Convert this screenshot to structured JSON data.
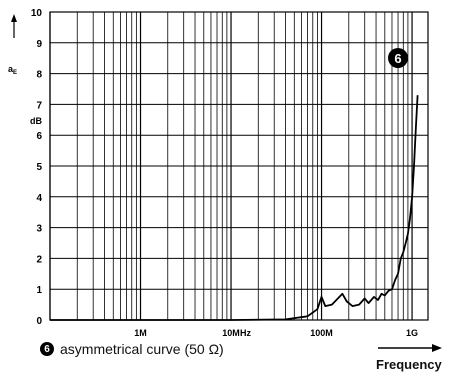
{
  "chart_data": {
    "type": "line",
    "title": "",
    "ylabel": "aE",
    "yunit": "dB",
    "xunit": "Hz",
    "xlabel": "Frequency",
    "xscale": "log",
    "xlim": [
      100000,
      1500000000
    ],
    "ylim": [
      0,
      10
    ],
    "yticks": [
      "0",
      "1",
      "2",
      "3",
      "4",
      "5",
      "6",
      "7",
      "8",
      "9",
      "10"
    ],
    "xticks": [
      {
        "value": 1000000,
        "label": "1M"
      },
      {
        "value": 10000000,
        "label": "10M"
      },
      {
        "value": 100000000,
        "label": "100M"
      },
      {
        "value": 1000000000,
        "label": "1G"
      }
    ],
    "grid": true,
    "series": [
      {
        "marker": "6",
        "x": [
          100000,
          1000000,
          10000000,
          40000000,
          70000000,
          90000000,
          100000000,
          110000000,
          130000000,
          170000000,
          190000000,
          220000000,
          260000000,
          300000000,
          330000000,
          380000000,
          420000000,
          460000000,
          500000000,
          550000000,
          600000000,
          650000000,
          700000000,
          750000000,
          800000000,
          850000000,
          900000000,
          950000000,
          1000000000,
          1050000000,
          1100000000,
          1150000000
        ],
        "y": [
          0,
          0,
          0,
          0.02,
          0.12,
          0.35,
          0.75,
          0.45,
          0.5,
          0.85,
          0.6,
          0.45,
          0.5,
          0.7,
          0.55,
          0.75,
          0.65,
          0.85,
          0.8,
          0.95,
          1.0,
          1.3,
          1.5,
          2.0,
          2.2,
          2.5,
          2.8,
          3.3,
          4.0,
          5.0,
          6.2,
          7.3
        ]
      }
    ]
  },
  "marker_badge": "6",
  "legend": {
    "marker": "6",
    "text": "asymmetrical curve (50 Ω)"
  },
  "y_axis": {
    "symbol": "a",
    "subscript": "E",
    "unit": "dB"
  },
  "x_axis": {
    "unit": "Hz",
    "label": "Frequency"
  }
}
